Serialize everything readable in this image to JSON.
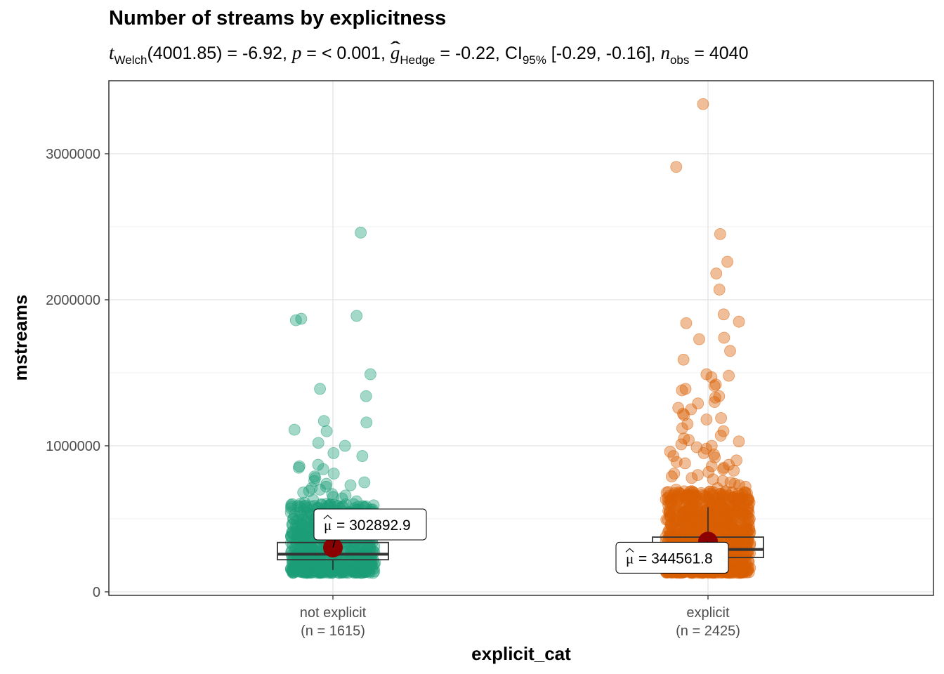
{
  "chart_data": {
    "type": "scatter",
    "title": "Number of streams by explicitness",
    "subtitle": {
      "t": "t",
      "welch": "Welch",
      "df_stat": "(4001.85) = -6.92, ",
      "p": "p",
      "p_val": " = < 0.001, ",
      "g": "g",
      "hedge": "Hedge",
      "g_val": " = -0.22, CI",
      "ci_sub": "95%",
      "ci_val": " [-0.29, -0.16], ",
      "n": "n",
      "obs": "obs",
      "n_val": " = 4040"
    },
    "xlabel": "explicit_cat",
    "ylabel": "mstreams",
    "ylim": [
      -20000,
      3410000
    ],
    "yticks": [
      0,
      1000000,
      2000000,
      3000000
    ],
    "ytick_labels": [
      "0",
      "1000000",
      "2000000",
      "3000000"
    ],
    "categories": [
      {
        "name": "not explicit",
        "n_label": "(n = 1615)",
        "color": "#1b9e77",
        "mean": 302892.9,
        "mean_label": "= 302892.9",
        "box": {
          "q1": 220000,
          "median": 258000,
          "q3": 338000,
          "whisker_low": 150000,
          "whisker_high": 420000
        },
        "outliers": [
          2460000,
          1890000,
          1870000,
          1860000,
          1490000,
          1390000,
          1340000,
          1170000,
          1160000,
          1110000,
          1100000,
          1020000,
          1000000,
          950000,
          930000,
          870000,
          860000,
          850000,
          840000,
          810000,
          790000,
          780000,
          760000,
          750000,
          740000,
          730000,
          720000,
          710000,
          700000,
          690000,
          680000,
          670000,
          660000,
          650000,
          640000,
          630000,
          620000,
          610000,
          600000,
          590000,
          580000,
          570000,
          560000,
          550000,
          540000,
          530000,
          520000,
          510000,
          500000,
          490000,
          480000,
          470000,
          460000,
          450000,
          440000,
          430000
        ]
      },
      {
        "name": "explicit",
        "n_label": "(n = 2425)",
        "color": "#d95f02",
        "mean": 344561.8,
        "mean_label": "= 344561.8",
        "box": {
          "q1": 235000,
          "median": 290000,
          "q3": 375000,
          "whisker_low": 150000,
          "whisker_high": 580000
        },
        "outliers": [
          3340000,
          2910000,
          2450000,
          2260000,
          2180000,
          2070000,
          1900000,
          1850000,
          1840000,
          1740000,
          1730000,
          1650000,
          1590000,
          1490000,
          1480000,
          1470000,
          1420000,
          1410000,
          1390000,
          1380000,
          1340000,
          1330000,
          1300000,
          1290000,
          1260000,
          1250000,
          1220000,
          1210000,
          1190000,
          1180000,
          1150000,
          1120000,
          1100000,
          1070000,
          1050000,
          1040000,
          1030000,
          1010000,
          1000000,
          990000,
          980000,
          960000,
          950000,
          940000,
          930000,
          920000,
          900000,
          890000,
          880000,
          870000,
          860000,
          850000,
          840000,
          830000,
          820000,
          810000,
          800000,
          790000,
          780000,
          770000,
          760000,
          750000,
          740000,
          730000,
          720000,
          710000,
          700000,
          690000,
          680000,
          670000,
          660000,
          650000,
          640000,
          630000,
          620000,
          610000,
          600000
        ]
      }
    ],
    "grid": true,
    "legend": "none"
  }
}
